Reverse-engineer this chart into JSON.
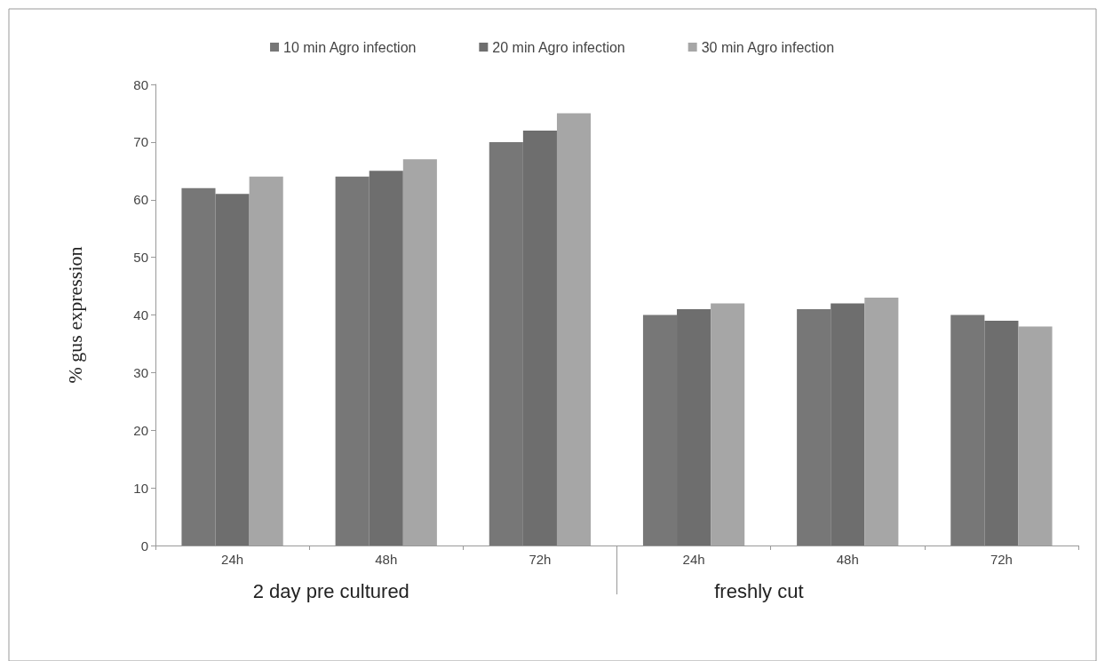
{
  "chart_data": {
    "type": "bar",
    "ylabel": "% gus expression",
    "categories": [
      "24h",
      "48h",
      "72h",
      "24h",
      "48h",
      "72h"
    ],
    "series": [
      {
        "name": "10 min Agro infection",
        "color": "#777777",
        "values": [
          62,
          64,
          70,
          40,
          41,
          40
        ]
      },
      {
        "name": "20 min Agro infection",
        "color": "#6e6e6e",
        "values": [
          61,
          65,
          72,
          41,
          42,
          39
        ]
      },
      {
        "name": "30 min Agro infection",
        "color": "#a6a6a6",
        "values": [
          64,
          67,
          75,
          42,
          43,
          38
        ]
      }
    ],
    "ylim": [
      0,
      80
    ],
    "yticks": [
      0,
      10,
      20,
      30,
      40,
      50,
      60,
      70,
      80
    ],
    "grid": false,
    "legend": "top",
    "annotations": [
      "2 day pre cultured",
      "freshly cut"
    ]
  }
}
